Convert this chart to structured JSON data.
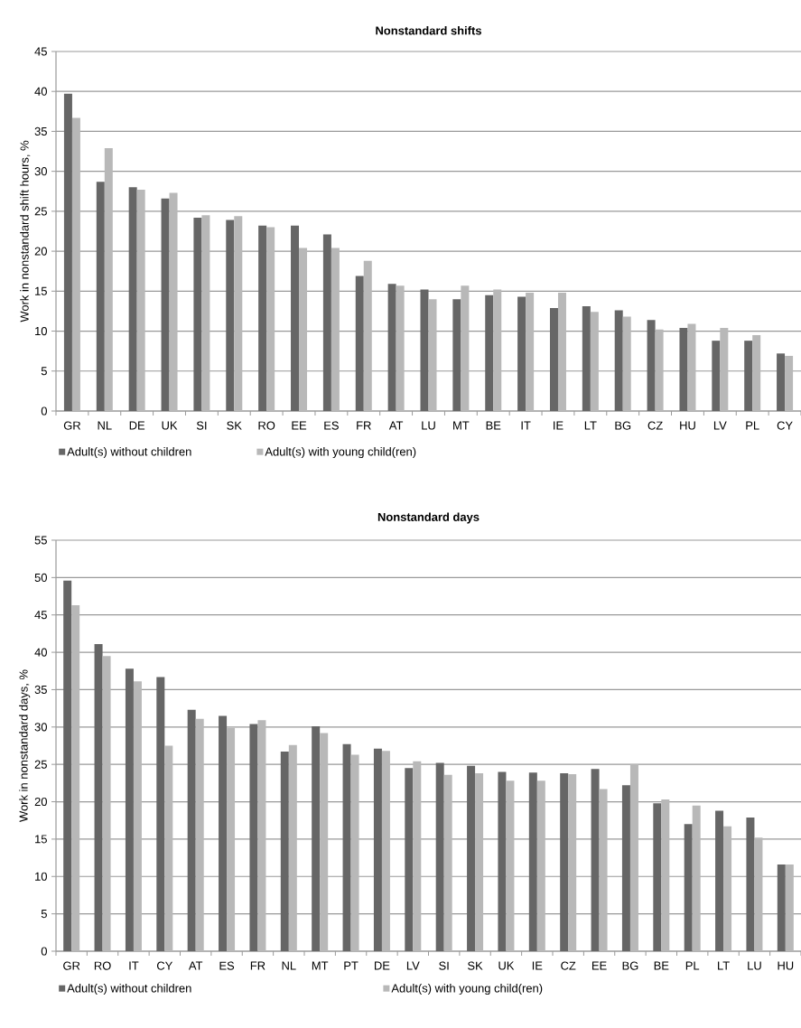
{
  "chart_data": [
    {
      "type": "bar",
      "title": "Nonstandard shifts",
      "ylabel": "Work in nonstandard shift hours, %",
      "categories": [
        "GR",
        "NL",
        "DE",
        "UK",
        "SI",
        "SK",
        "RO",
        "EE",
        "ES",
        "FR",
        "AT",
        "LU",
        "MT",
        "BE",
        "IT",
        "IE",
        "LT",
        "BG",
        "CZ",
        "HU",
        "LV",
        "PL",
        "CY"
      ],
      "series": [
        {
          "name": "Adult(s) without children",
          "color": "#666666",
          "values": [
            39.7,
            28.7,
            28.0,
            26.6,
            24.2,
            23.9,
            23.2,
            23.2,
            22.1,
            16.9,
            15.9,
            15.2,
            14.0,
            14.5,
            14.3,
            12.9,
            13.1,
            12.6,
            11.4,
            10.4,
            8.8,
            8.8,
            7.2
          ]
        },
        {
          "name": "Adult(s) with young child(ren)",
          "color": "#b8b8b8",
          "values": [
            36.7,
            32.9,
            27.7,
            27.3,
            24.5,
            24.4,
            23.0,
            20.4,
            20.4,
            18.8,
            15.7,
            14.0,
            15.7,
            15.2,
            14.8,
            14.8,
            12.4,
            11.8,
            10.2,
            10.9,
            10.4,
            9.5,
            6.9
          ]
        }
      ],
      "ylim": [
        0,
        45
      ],
      "yticks": [
        0,
        5,
        10,
        15,
        20,
        25,
        30,
        35,
        40,
        45
      ],
      "grid": "y",
      "legend": "bottom"
    },
    {
      "type": "bar",
      "title": "Nonstandard days",
      "ylabel": "Work in nonstandard days, %",
      "categories": [
        "GR",
        "RO",
        "IT",
        "CY",
        "AT",
        "ES",
        "FR",
        "NL",
        "MT",
        "PT",
        "DE",
        "LV",
        "SI",
        "SK",
        "UK",
        "IE",
        "CZ",
        "EE",
        "BG",
        "BE",
        "PL",
        "LT",
        "LU",
        "HU"
      ],
      "series": [
        {
          "name": "Adult(s) without children",
          "color": "#666666",
          "values": [
            49.6,
            41.1,
            37.8,
            36.7,
            32.3,
            31.5,
            30.4,
            26.7,
            30.1,
            27.7,
            27.1,
            24.5,
            25.2,
            24.8,
            24.0,
            23.9,
            23.8,
            24.4,
            22.2,
            19.8,
            17.0,
            18.8,
            17.9,
            11.6
          ]
        },
        {
          "name": "Adult(s) with young child(ren)",
          "color": "#b8b8b8",
          "values": [
            46.3,
            39.5,
            36.1,
            27.5,
            31.1,
            29.9,
            30.9,
            27.6,
            29.2,
            26.3,
            26.8,
            25.4,
            23.6,
            23.8,
            22.8,
            22.8,
            23.7,
            21.7,
            25.0,
            20.3,
            19.5,
            16.7,
            15.2,
            11.6
          ]
        }
      ],
      "ylim": [
        0,
        55
      ],
      "yticks": [
        0,
        5,
        10,
        15,
        20,
        25,
        30,
        35,
        40,
        45,
        50,
        55
      ],
      "grid": "y",
      "legend": "bottom"
    }
  ]
}
